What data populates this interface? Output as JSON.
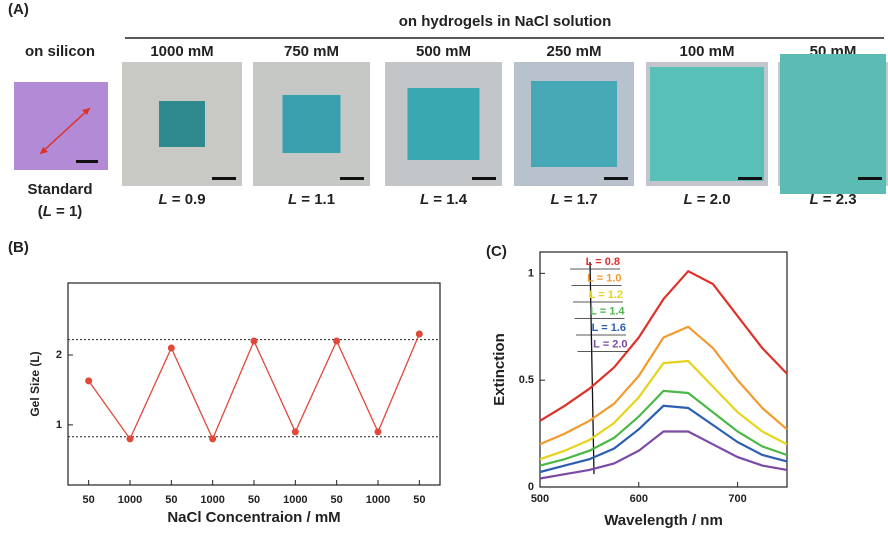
{
  "panel_a": {
    "label": "(A)",
    "group_title": "on hydrogels in NaCl solution",
    "reference": {
      "title": "on silicon",
      "caption": "Standard",
      "param": {
        "open": "(",
        "var": "L",
        "rest": " = 1)"
      }
    },
    "samples": [
      {
        "title": "1000 mM",
        "param": {
          "var": "L",
          "rest": " = 0.9"
        }
      },
      {
        "title": "750 mM",
        "param": {
          "var": "L",
          "rest": " = 1.1"
        }
      },
      {
        "title": "500 mM",
        "param": {
          "var": "L",
          "rest": " = 1.4"
        }
      },
      {
        "title": "250 mM",
        "param": {
          "var": "L",
          "rest": " = 1.7"
        }
      },
      {
        "title": "100 mM",
        "param": {
          "var": "L",
          "rest": " = 2.0"
        }
      },
      {
        "title": "50 mM",
        "param": {
          "var": "L",
          "rest": " = 2.3"
        }
      }
    ]
  },
  "chart_data": [
    {
      "type": "line",
      "label": "(B)",
      "xlabel": "NaCl Concentraion / mM",
      "ylabel": "Gel Size (L)",
      "categories": [
        "50",
        "1000",
        "50",
        "1000",
        "50",
        "1000",
        "50",
        "1000",
        "50"
      ],
      "values": [
        1.63,
        0.8,
        2.1,
        0.8,
        2.2,
        0.9,
        2.2,
        0.9,
        2.3
      ],
      "color": "#e0483a",
      "ylim": [
        0.14,
        3.03
      ],
      "yticks": [
        1,
        2
      ],
      "reference_lines": [
        2.22,
        0.83
      ]
    },
    {
      "type": "line",
      "label": "(C)",
      "xlabel": "Wavelength / nm",
      "ylabel": "Extinction",
      "x": [
        500,
        525,
        550,
        575,
        600,
        625,
        650,
        675,
        700,
        725,
        750
      ],
      "series": [
        {
          "name": "L = 0.8",
          "color": "#e0302a",
          "values": [
            0.31,
            0.38,
            0.46,
            0.56,
            0.7,
            0.88,
            1.01,
            0.95,
            0.8,
            0.65,
            0.53
          ]
        },
        {
          "name": "L = 1.0",
          "color": "#f39a2e",
          "values": [
            0.2,
            0.25,
            0.31,
            0.39,
            0.52,
            0.7,
            0.75,
            0.65,
            0.5,
            0.37,
            0.27
          ]
        },
        {
          "name": "L = 1.2",
          "color": "#e6d41c",
          "values": [
            0.13,
            0.17,
            0.22,
            0.3,
            0.42,
            0.58,
            0.59,
            0.47,
            0.35,
            0.26,
            0.2
          ]
        },
        {
          "name": "L = 1.4",
          "color": "#4cb848",
          "values": [
            0.1,
            0.13,
            0.17,
            0.23,
            0.33,
            0.45,
            0.44,
            0.35,
            0.26,
            0.19,
            0.15
          ]
        },
        {
          "name": "L = 1.6",
          "color": "#2c5fb0",
          "values": [
            0.07,
            0.1,
            0.13,
            0.18,
            0.27,
            0.38,
            0.37,
            0.29,
            0.21,
            0.15,
            0.12
          ]
        },
        {
          "name": "L = 2.0",
          "color": "#7b4aa5",
          "values": [
            0.04,
            0.06,
            0.08,
            0.11,
            0.17,
            0.26,
            0.26,
            0.2,
            0.14,
            0.1,
            0.08
          ]
        }
      ],
      "xlim": [
        500,
        750
      ],
      "ylim": [
        0,
        1.1
      ],
      "xticks": [
        500,
        600,
        700
      ],
      "yticks": [
        0,
        0.5,
        1
      ]
    }
  ]
}
